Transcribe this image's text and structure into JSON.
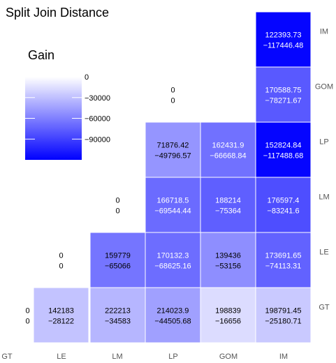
{
  "chart_data": {
    "type": "heatmap",
    "title": "Split Join Distance",
    "x_labels": [
      "GT",
      "LE",
      "LM",
      "LP",
      "GOM",
      "IM"
    ],
    "y_labels": [
      "IM",
      "GOM",
      "LP",
      "LM",
      "LE",
      "GT"
    ],
    "legend": {
      "title": "Gain",
      "ticks": [
        0,
        -30000,
        -60000,
        -90000
      ],
      "tick_labels": [
        "0",
        "−30000",
        "−60000",
        "−90000"
      ],
      "range": [
        0,
        -120000
      ],
      "low_color": "#ffffff",
      "high_color": "#0000ff"
    },
    "cells": [
      {
        "col": "IM",
        "row": "IM",
        "top": "122393.73",
        "bottom": "−117446.48",
        "gain": -117446.48
      },
      {
        "col": "LP",
        "row": "GOM",
        "top": "0",
        "bottom": "0",
        "gain": null
      },
      {
        "col": "IM",
        "row": "GOM",
        "top": "170588.75",
        "bottom": "−78271.67",
        "gain": -78271.67
      },
      {
        "col": "LP",
        "row": "LP",
        "top": "71876.42",
        "bottom": "−49796.57",
        "gain": -49796.57
      },
      {
        "col": "GOM",
        "row": "LP",
        "top": "162431.9",
        "bottom": "−66668.84",
        "gain": -66668.84
      },
      {
        "col": "IM",
        "row": "LP",
        "top": "152824.84",
        "bottom": "−117488.68",
        "gain": -117488.68
      },
      {
        "col": "LM",
        "row": "LM",
        "top": "0",
        "bottom": "0",
        "gain": null
      },
      {
        "col": "LP",
        "row": "LM",
        "top": "166718.5",
        "bottom": "−69544.44",
        "gain": -69544.44
      },
      {
        "col": "GOM",
        "row": "LM",
        "top": "188214",
        "bottom": "−75364",
        "gain": -75364
      },
      {
        "col": "IM",
        "row": "LM",
        "top": "176597.4",
        "bottom": "−83241.6",
        "gain": -83241.6
      },
      {
        "col": "LE",
        "row": "LE",
        "top": "0",
        "bottom": "0",
        "gain": null
      },
      {
        "col": "LM",
        "row": "LE",
        "top": "159779",
        "bottom": "−65066",
        "gain": -65066
      },
      {
        "col": "LP",
        "row": "LE",
        "top": "170132.3",
        "bottom": "−68625.16",
        "gain": -68625.16
      },
      {
        "col": "GOM",
        "row": "LE",
        "top": "139436",
        "bottom": "−53156",
        "gain": -53156
      },
      {
        "col": "IM",
        "row": "LE",
        "top": "173691.65",
        "bottom": "−74113.31",
        "gain": -74113.31
      },
      {
        "col": "GT",
        "row": "GT",
        "top": "0",
        "bottom": "0",
        "gain": null
      },
      {
        "col": "LE",
        "row": "GT",
        "top": "142183",
        "bottom": "−28122",
        "gain": -28122
      },
      {
        "col": "LM",
        "row": "GT",
        "top": "222213",
        "bottom": "−34583",
        "gain": -34583
      },
      {
        "col": "LP",
        "row": "GT",
        "top": "214023.9",
        "bottom": "−44505.68",
        "gain": -44505.68
      },
      {
        "col": "GOM",
        "row": "GT",
        "top": "198839",
        "bottom": "−16656",
        "gain": -16656
      },
      {
        "col": "IM",
        "row": "GT",
        "top": "198791.45",
        "bottom": "−25180.71",
        "gain": -25180.71
      }
    ]
  }
}
